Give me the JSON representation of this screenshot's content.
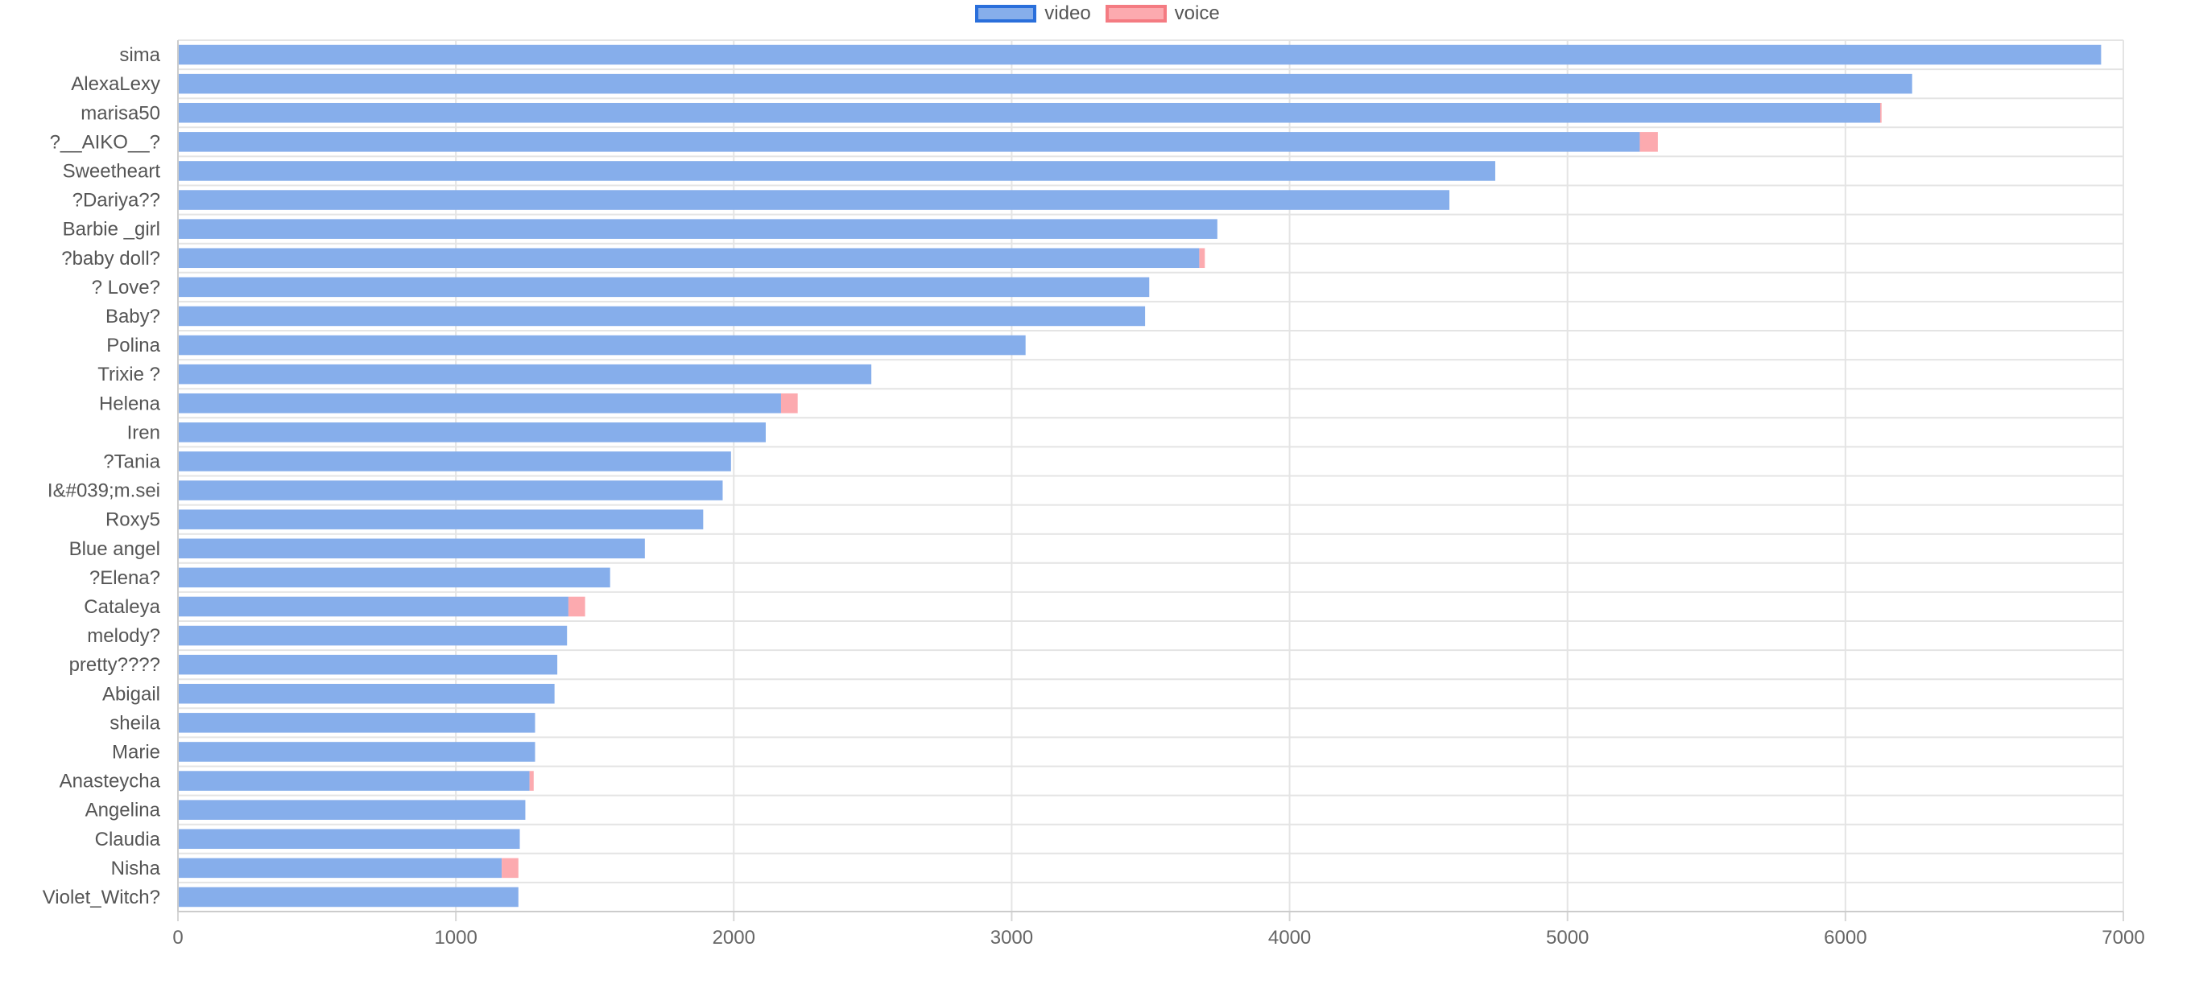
{
  "chart_data": {
    "type": "bar",
    "orientation": "horizontal",
    "stacked": true,
    "title": "",
    "xlabel": "",
    "ylabel": "",
    "xlim": [
      0,
      7000
    ],
    "x_ticks": [
      0,
      1000,
      2000,
      3000,
      4000,
      5000,
      6000,
      7000
    ],
    "grid": true,
    "legend_position": "top-center",
    "categories": [
      "sima",
      "AlexaLexy",
      "marisa50",
      "?__AIKO__?",
      "Sweetheart",
      "?Dariya??",
      "Barbie _girl",
      "?baby doll?",
      "? Love?",
      "Baby?",
      "Polina",
      "Trixie ?",
      "Helena",
      "Iren",
      "?Tania",
      "I&#039;m.sei",
      "Roxy5",
      "Blue angel",
      "?Elena?",
      "Cataleya",
      "melody?",
      "pretty????",
      "Abigail",
      "sheila",
      "Marie",
      "Anasteycha",
      "Angelina",
      "Claudia",
      "Nisha",
      "Violet_Witch?"
    ],
    "series": [
      {
        "name": "video",
        "color": "#86aeeb",
        "border_color": "#2a6fdb",
        "values": [
          6920,
          6240,
          6125,
          5260,
          4740,
          4575,
          3740,
          3675,
          3495,
          3480,
          3050,
          2495,
          2170,
          2115,
          1990,
          1960,
          1890,
          1680,
          1555,
          1405,
          1400,
          1365,
          1355,
          1285,
          1285,
          1265,
          1250,
          1230,
          1165,
          1225
        ]
      },
      {
        "name": "voice",
        "color": "#fcaaaf",
        "border_color": "#f47b82",
        "values": [
          0,
          0,
          5,
          65,
          0,
          0,
          0,
          20,
          0,
          0,
          0,
          0,
          60,
          0,
          0,
          0,
          0,
          0,
          0,
          60,
          0,
          0,
          0,
          0,
          0,
          15,
          0,
          0,
          60,
          0
        ]
      }
    ]
  }
}
